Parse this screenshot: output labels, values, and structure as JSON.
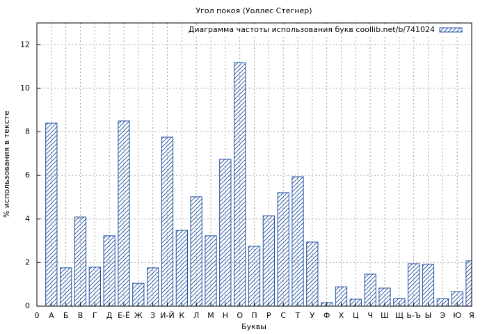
{
  "chart_data": {
    "type": "bar",
    "title": "Угол покоя (Уоллес Стегнер)",
    "xlabel": "Буквы",
    "ylabel": "% использования в тексте",
    "xlim": [
      0,
      30
    ],
    "xticks": [
      0,
      {
        "value": 1,
        "label": "А"
      },
      {
        "value": 2,
        "label": "Б"
      },
      {
        "value": 3,
        "label": "В"
      },
      {
        "value": 4,
        "label": "Г"
      },
      {
        "value": 5,
        "label": "Д"
      },
      {
        "value": 6,
        "label": "Е-Ё"
      },
      {
        "value": 7,
        "label": "Ж"
      },
      {
        "value": 8,
        "label": "З"
      },
      {
        "value": 9,
        "label": "И-Й"
      },
      {
        "value": 10,
        "label": "К"
      },
      {
        "value": 11,
        "label": "Л"
      },
      {
        "value": 12,
        "label": "М"
      },
      {
        "value": 13,
        "label": "Н"
      },
      {
        "value": 14,
        "label": "О"
      },
      {
        "value": 15,
        "label": "П"
      },
      {
        "value": 16,
        "label": "Р"
      },
      {
        "value": 17,
        "label": "С"
      },
      {
        "value": 18,
        "label": "Т"
      },
      {
        "value": 19,
        "label": "У"
      },
      {
        "value": 20,
        "label": "Ф"
      },
      {
        "value": 21,
        "label": "Х"
      },
      {
        "value": 22,
        "label": "Ц"
      },
      {
        "value": 23,
        "label": "Ч"
      },
      {
        "value": 24,
        "label": "Ш"
      },
      {
        "value": 25,
        "label": "Щ"
      },
      {
        "value": 26,
        "label": "Ь-Ъ"
      },
      {
        "value": 27,
        "label": "Ы"
      },
      {
        "value": 28,
        "label": "Э"
      },
      {
        "value": 29,
        "label": "Ю"
      },
      {
        "value": 30,
        "label": "Я"
      }
    ],
    "ylim": [
      0,
      13
    ],
    "yticks": [
      0,
      2,
      4,
      6,
      8,
      10,
      12
    ],
    "grid": true,
    "legend": "top-right",
    "series": [
      {
        "name": "Диаграмма частоты использования букв coollib.net/b/741024",
        "color": "#1f4fa0",
        "x": [
          1,
          2,
          3,
          4,
          5,
          6,
          7,
          8,
          9,
          10,
          11,
          12,
          13,
          14,
          15,
          16,
          17,
          18,
          19,
          20,
          21,
          22,
          23,
          24,
          25,
          26,
          27,
          28,
          29,
          30
        ],
        "values": [
          8.4,
          1.76,
          4.09,
          1.79,
          3.23,
          8.5,
          1.05,
          1.76,
          7.76,
          3.48,
          5.02,
          3.23,
          6.74,
          11.18,
          2.75,
          4.15,
          5.21,
          5.94,
          2.94,
          0.16,
          0.89,
          0.32,
          1.47,
          0.83,
          0.35,
          1.95,
          1.92,
          0.35,
          0.67,
          2.08
        ]
      }
    ]
  }
}
